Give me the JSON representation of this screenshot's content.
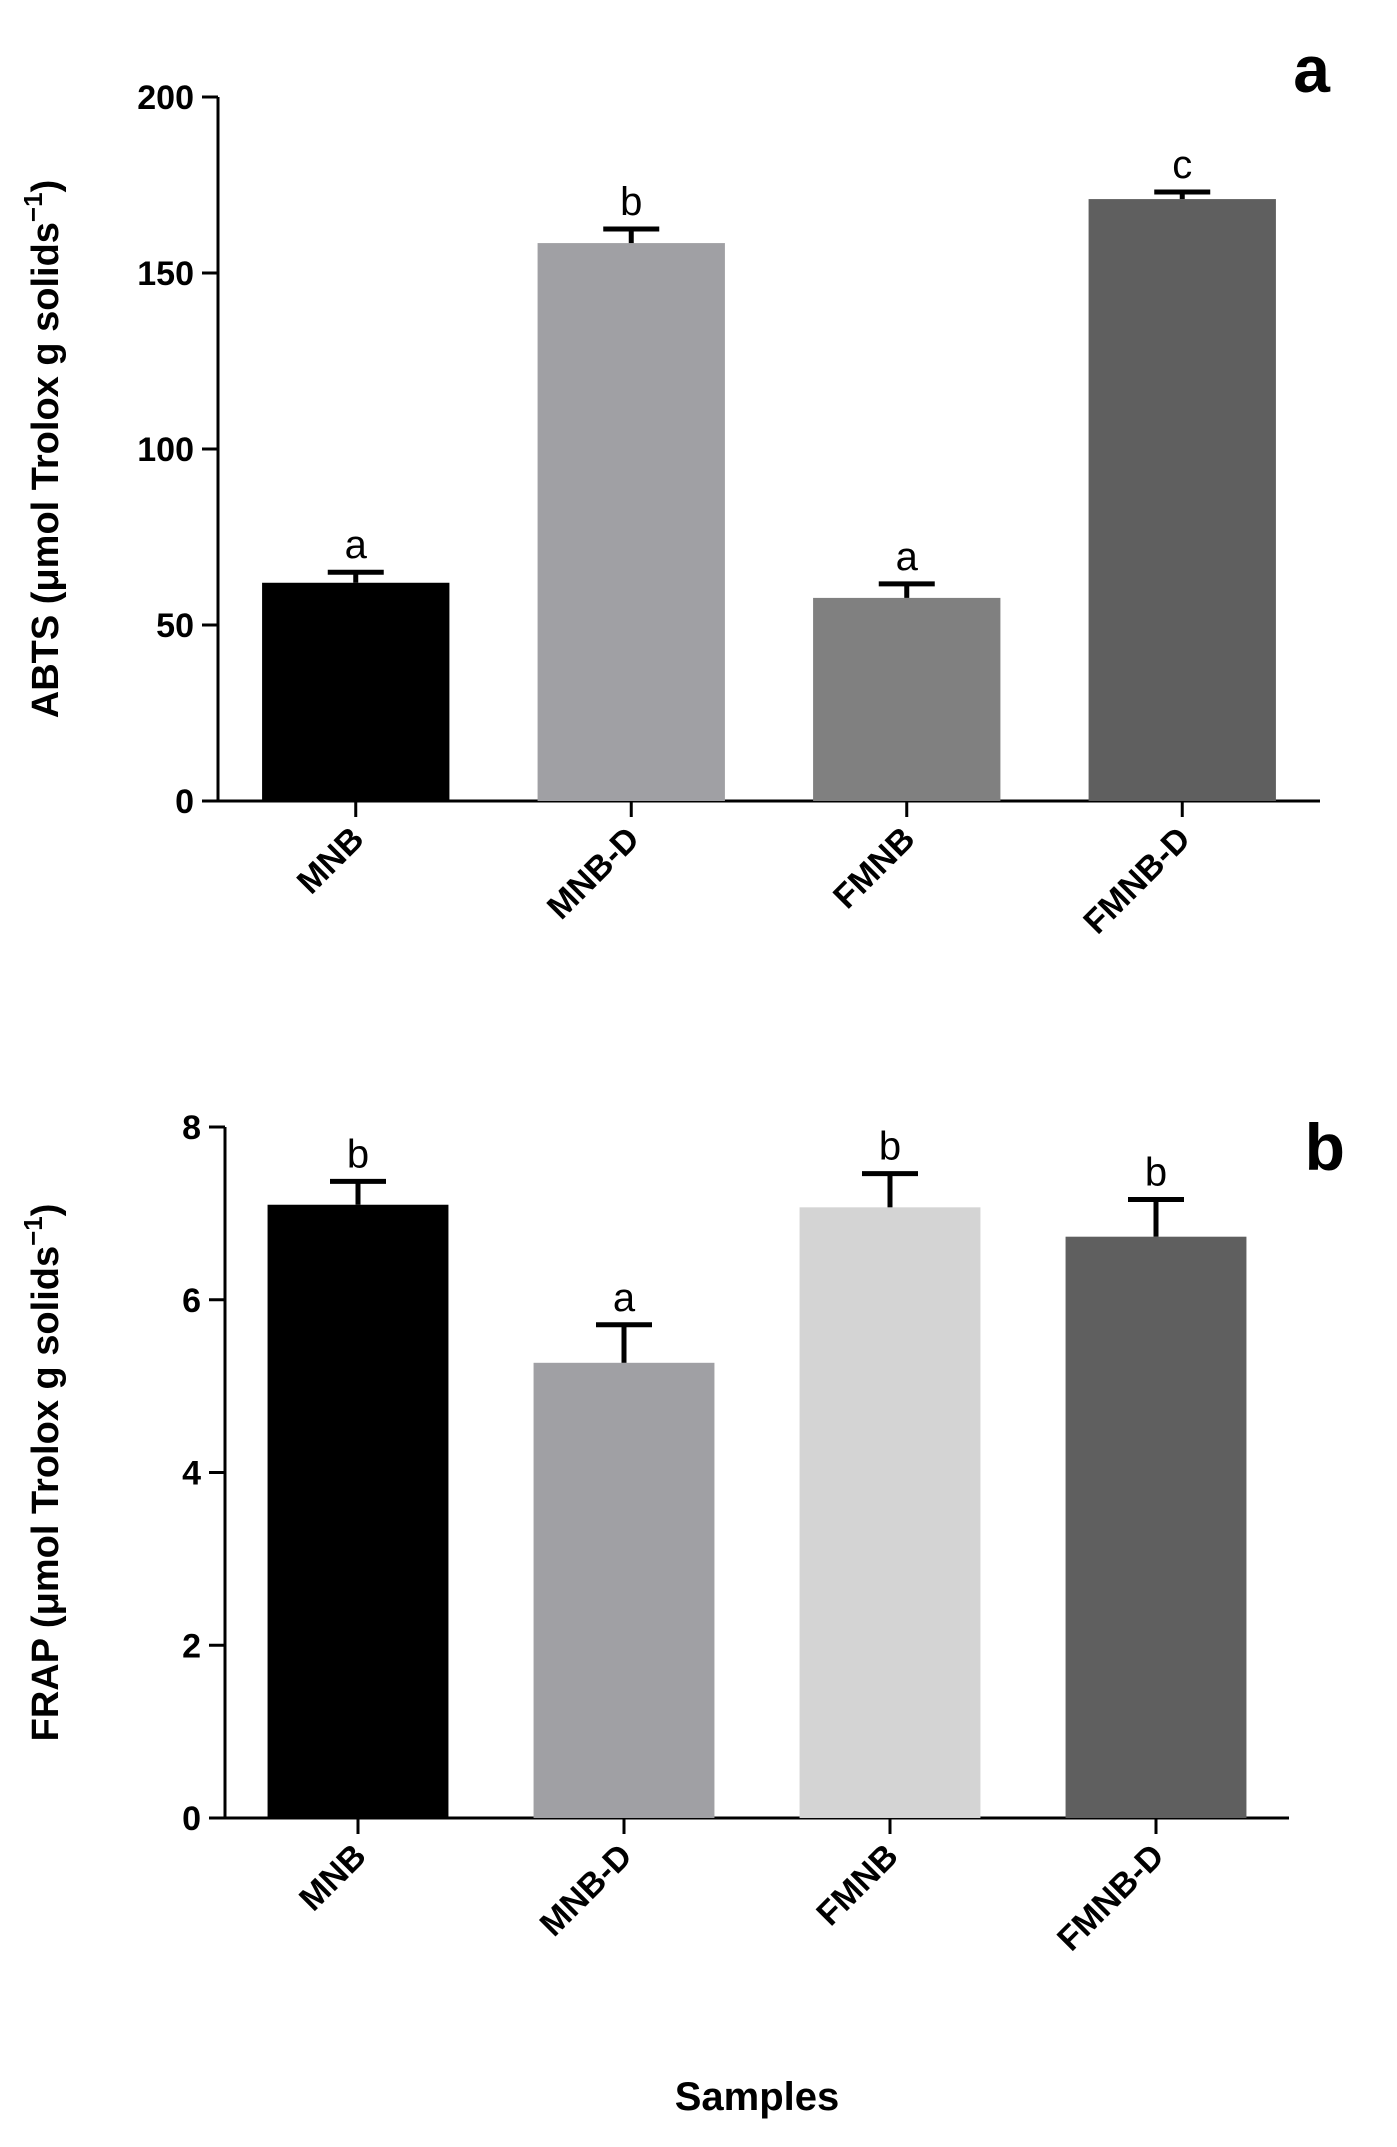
{
  "chart_data": [
    {
      "type": "bar",
      "panel_label": "a",
      "ylabel": "ABTS (μmol Trolox g solids",
      "ylabel_superscript": "−1",
      "ylabel_end": ")",
      "categories": [
        "MNB",
        "MNB-D",
        "FMNB",
        "FMNB-D"
      ],
      "values": [
        62,
        158.5,
        57.7,
        171
      ],
      "errors": [
        3,
        4,
        4,
        2
      ],
      "annotations": [
        "a",
        "b",
        "a",
        "c"
      ],
      "colors": [
        "#000000",
        "#a0a0a4",
        "#808080",
        "#5f5f5f"
      ],
      "ylim": [
        0,
        200
      ],
      "yticks": [
        0,
        50,
        100,
        150,
        200
      ]
    },
    {
      "type": "bar",
      "panel_label": "b",
      "ylabel": "FRAP (μmol Trolox g solids",
      "ylabel_superscript": "−1",
      "ylabel_end": ")",
      "xlabel": "Samples",
      "categories": [
        "MNB",
        "MNB-D",
        "FMNB",
        "FMNB-D"
      ],
      "values": [
        7.1,
        5.27,
        7.07,
        6.73
      ],
      "errors": [
        0.27,
        0.44,
        0.39,
        0.43
      ],
      "annotations": [
        "b",
        "a",
        "b",
        "b"
      ],
      "colors": [
        "#000000",
        "#a0a0a4",
        "#d4d4d4",
        "#5f5f5f"
      ],
      "ylim": [
        0,
        8
      ],
      "yticks": [
        0,
        2,
        4,
        6,
        8
      ]
    }
  ]
}
